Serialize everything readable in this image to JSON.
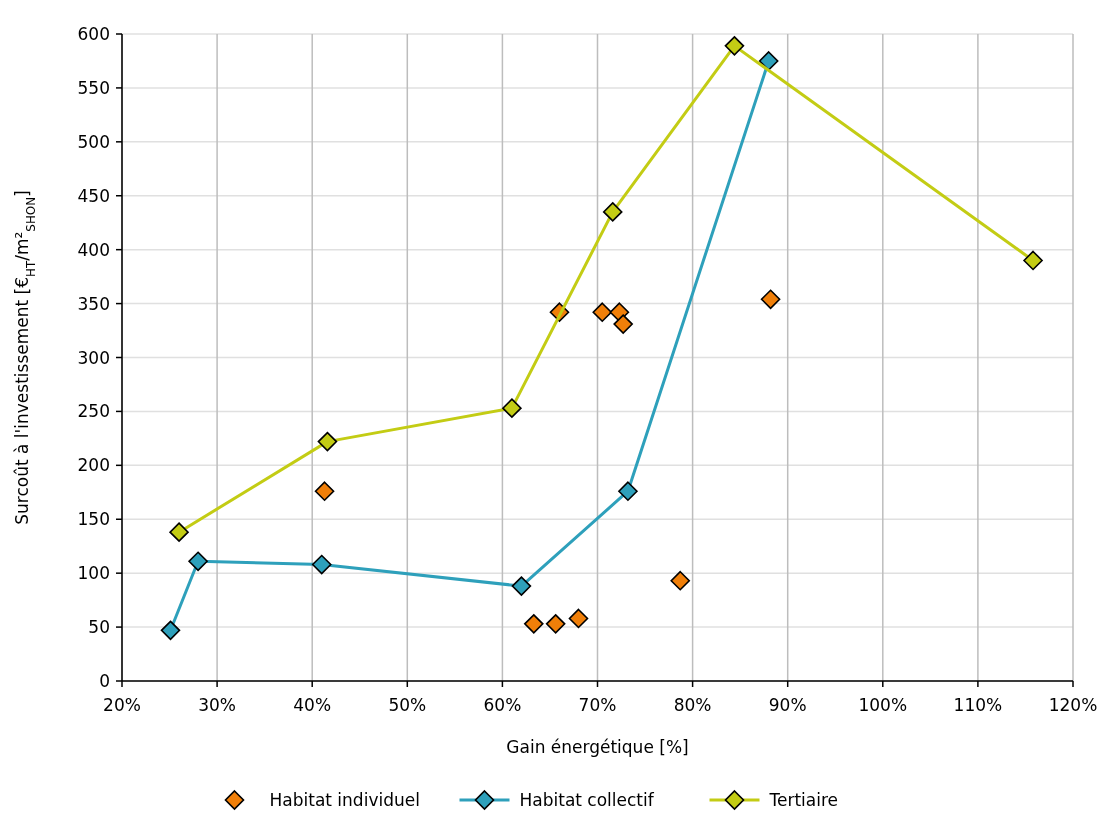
{
  "chart_data": {
    "type": "line",
    "xlabel": "Gain énergétique [%]",
    "ylabel": "Surcoût à l'investissement [€$_{HT}$/m²$_{SHON}$]",
    "xlim": [
      20,
      120
    ],
    "xticks": [
      {
        "value": 20,
        "label": "20%"
      },
      {
        "value": 30,
        "label": "30%"
      },
      {
        "value": 40,
        "label": "40%"
      },
      {
        "value": 50,
        "label": "50%"
      },
      {
        "value": 60,
        "label": "60%"
      },
      {
        "value": 70,
        "label": "70%"
      },
      {
        "value": 80,
        "label": "80%"
      },
      {
        "value": 90,
        "label": "90%"
      },
      {
        "value": 100,
        "label": "100%"
      },
      {
        "value": 110,
        "label": "110%"
      },
      {
        "value": 120,
        "label": "120%"
      }
    ],
    "ylim": [
      0,
      600
    ],
    "yticks": [
      0,
      50,
      100,
      150,
      200,
      250,
      300,
      350,
      400,
      450,
      500,
      550,
      600
    ],
    "grid": true,
    "legend": "bottom",
    "marker": "diamond",
    "line_style": "solid",
    "series": [
      {
        "name": "Habitat individuel",
        "type": "scatter",
        "color": "#f07f09",
        "x": [
          41.3,
          66.0,
          70.5,
          72.3,
          72.7,
          63.3,
          65.6,
          68.0,
          78.7,
          88.2
        ],
        "values": [
          176,
          342,
          342,
          342,
          331,
          53,
          53,
          58,
          93,
          354
        ]
      },
      {
        "name": "Habitat collectif",
        "type": "line",
        "color": "#2ea0bb",
        "x": [
          25.1,
          28.0,
          41.0,
          62.0,
          73.2,
          88.0
        ],
        "values": [
          47,
          111,
          108,
          88,
          176,
          575
        ]
      },
      {
        "name": "Tertiaire",
        "type": "line",
        "color": "#c3cc14",
        "x": [
          26.0,
          41.6,
          61.0,
          71.6,
          84.4,
          115.8
        ],
        "values": [
          138,
          222,
          253,
          435,
          589,
          390
        ]
      }
    ]
  }
}
